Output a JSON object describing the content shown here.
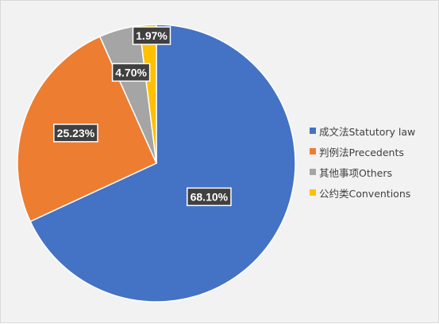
{
  "chart_data": {
    "type": "pie",
    "title": "",
    "categories": [
      "成文法Statutory law",
      "判例法Precedents",
      "其他事项Others",
      "公约类Conventions"
    ],
    "values": [
      68.1,
      25.23,
      4.7,
      1.97
    ],
    "data_labels": [
      "68.10%",
      "25.23%",
      "4.70%",
      "1.97%"
    ],
    "colors": [
      "#4472c4",
      "#ed7d31",
      "#a5a5a5",
      "#ffc000"
    ],
    "start_angle_deg": 0,
    "direction": "clockwise",
    "legend_position": "right"
  }
}
